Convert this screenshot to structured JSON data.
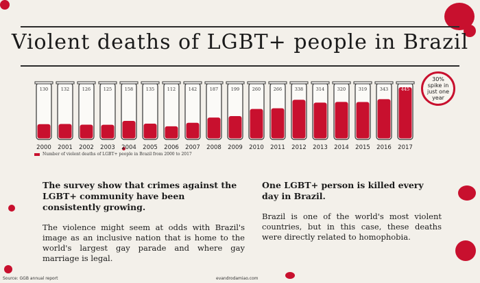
{
  "title": "Violent deaths of LGBT+ people in Brazil",
  "badge": "30% spike in just one year",
  "legend": "Number of violent deaths of LGBT+ people in Brazil from 2000 to 2017",
  "left_column": {
    "heading": "The survey show that crimes against the LGBT+ community have been consistently growing.",
    "body": "The violence might seem at odds with Brazil's image as an inclusive nation that is home to the world's largest gay parade and where gay marriage is legal."
  },
  "right_column": {
    "heading": "One LGBT+ person is killed every day in Brazil.",
    "body": "Brazil is one of the world's most violent countries, but in this case, these deaths were directly related to homophobia."
  },
  "footer": {
    "source": "Source: GGB annual report",
    "credit": "evandrodamiao.com"
  },
  "colors": {
    "accent": "#c8102e",
    "background": "#f3f0ea",
    "text": "#1a1a1a"
  },
  "chart_data": {
    "type": "bar",
    "categories": [
      "2000",
      "2001",
      "2002",
      "2003",
      "2004",
      "2005",
      "2006",
      "2007",
      "2008",
      "2009",
      "2010",
      "2011",
      "2012",
      "2013",
      "2014",
      "2015",
      "2016",
      "2017"
    ],
    "values": [
      130,
      132,
      126,
      125,
      158,
      135,
      112,
      142,
      187,
      199,
      260,
      266,
      338,
      314,
      320,
      319,
      343,
      445
    ],
    "value_labels": [
      "130",
      "132",
      "126",
      "125",
      "158",
      "135",
      "112",
      "142",
      "187",
      "199",
      "260",
      "266",
      "338",
      "314",
      "320",
      "319",
      "343",
      "445"
    ],
    "ylim": [
      0,
      445
    ],
    "title": "Violent deaths of LGBT+ people in Brazil",
    "grid": false,
    "legend": "Number of violent deaths of LGBT+ people in Brazil from 2000 to 2017"
  }
}
